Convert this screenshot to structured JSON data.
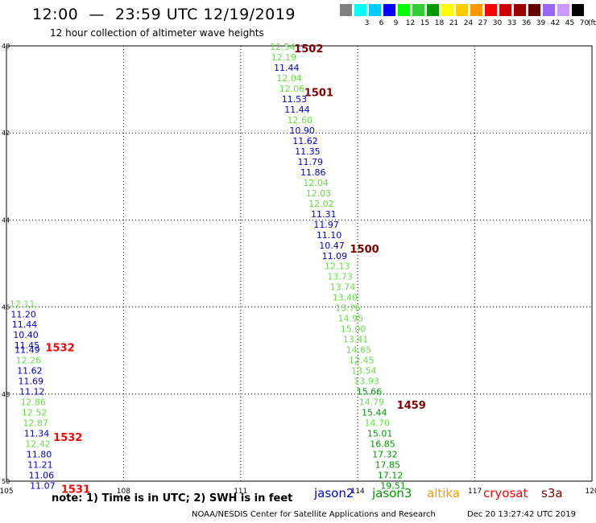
{
  "title": "12:00  —  23:59 UTC 12/19/2019",
  "subtitle": "12 hour collection of altimeter wave heights",
  "scale": {
    "labels": [
      "",
      "3",
      "6",
      "9",
      "12",
      "15",
      "18",
      "21",
      "24",
      "27",
      "30",
      "33",
      "36",
      "39",
      "42",
      "45",
      "70"
    ],
    "colors": [
      "#808080",
      "#00ffff",
      "#00ccff",
      "#0000ff",
      "#00ff00",
      "#33cc33",
      "#009900",
      "#ffff00",
      "#ffcc00",
      "#ff9900",
      "#ff0000",
      "#cc0000",
      "#990000",
      "#660000",
      "#9966ff",
      "#cc99ff",
      "#000000"
    ],
    "unit": "(ft)"
  },
  "map": {
    "x_ticks": [
      "105",
      "108",
      "111",
      "114",
      "117",
      "120"
    ],
    "y_ticks": [
      "40",
      "42",
      "44",
      "46",
      "48",
      "50"
    ],
    "lon_range": [
      105,
      120
    ],
    "lat_range": [
      40,
      50
    ]
  },
  "observations": [
    {
      "value": "12.54",
      "lon": 111.75,
      "lat": 40.02,
      "color": "#66dd44"
    },
    {
      "value": "12.19",
      "lon": 111.78,
      "lat": 40.26,
      "color": "#66dd44"
    },
    {
      "value": "11.44",
      "lon": 111.85,
      "lat": 40.5,
      "color": "#0000cc"
    },
    {
      "value": "12.04",
      "lon": 111.92,
      "lat": 40.74,
      "color": "#66dd44"
    },
    {
      "value": "12.06",
      "lon": 111.99,
      "lat": 40.98,
      "color": "#66dd44"
    },
    {
      "value": "11.53",
      "lon": 112.05,
      "lat": 41.22,
      "color": "#0000cc"
    },
    {
      "value": "11.44",
      "lon": 112.12,
      "lat": 41.46,
      "color": "#0000cc"
    },
    {
      "value": "12.60",
      "lon": 112.19,
      "lat": 41.7,
      "color": "#66dd44"
    },
    {
      "value": "10.90",
      "lon": 112.25,
      "lat": 41.94,
      "color": "#0000cc"
    },
    {
      "value": "11.62",
      "lon": 112.33,
      "lat": 42.18,
      "color": "#0000cc"
    },
    {
      "value": "11.35",
      "lon": 112.39,
      "lat": 42.42,
      "color": "#0000cc"
    },
    {
      "value": "11.79",
      "lon": 112.46,
      "lat": 42.66,
      "color": "#0000cc"
    },
    {
      "value": "11.86",
      "lon": 112.53,
      "lat": 42.9,
      "color": "#0000cc"
    },
    {
      "value": "12.04",
      "lon": 112.6,
      "lat": 43.14,
      "color": "#66dd44"
    },
    {
      "value": "12.03",
      "lon": 112.67,
      "lat": 43.38,
      "color": "#66dd44"
    },
    {
      "value": "12.02",
      "lon": 112.74,
      "lat": 43.62,
      "color": "#66dd44"
    },
    {
      "value": "11.31",
      "lon": 112.8,
      "lat": 43.86,
      "color": "#0000cc"
    },
    {
      "value": "11.97",
      "lon": 112.87,
      "lat": 44.1,
      "color": "#0000cc"
    },
    {
      "value": "11.10",
      "lon": 112.94,
      "lat": 44.34,
      "color": "#0000cc"
    },
    {
      "value": "10.47",
      "lon": 113.01,
      "lat": 44.58,
      "color": "#0000cc"
    },
    {
      "value": "11.09",
      "lon": 113.08,
      "lat": 44.82,
      "color": "#0000cc"
    },
    {
      "value": "12.13",
      "lon": 113.15,
      "lat": 45.06,
      "color": "#66dd44"
    },
    {
      "value": "13.73",
      "lon": 113.22,
      "lat": 45.3,
      "color": "#66dd44"
    },
    {
      "value": "13.74",
      "lon": 113.29,
      "lat": 45.54,
      "color": "#66dd44"
    },
    {
      "value": "13.40",
      "lon": 113.35,
      "lat": 45.78,
      "color": "#66dd44"
    },
    {
      "value": "13.76",
      "lon": 113.42,
      "lat": 46.02,
      "color": "#66dd44"
    },
    {
      "value": "14.95",
      "lon": 113.49,
      "lat": 46.26,
      "color": "#66dd44"
    },
    {
      "value": "15.00",
      "lon": 113.56,
      "lat": 46.5,
      "color": "#66dd44"
    },
    {
      "value": "13.41",
      "lon": 113.62,
      "lat": 46.74,
      "color": "#66dd44"
    },
    {
      "value": "14.65",
      "lon": 113.7,
      "lat": 46.98,
      "color": "#66dd44"
    },
    {
      "value": "12.45",
      "lon": 113.77,
      "lat": 47.22,
      "color": "#66dd44"
    },
    {
      "value": "13.54",
      "lon": 113.83,
      "lat": 47.46,
      "color": "#66dd44"
    },
    {
      "value": "13.93",
      "lon": 113.9,
      "lat": 47.7,
      "color": "#66dd44"
    },
    {
      "value": "15.66",
      "lon": 113.97,
      "lat": 47.94,
      "color": "#009900"
    },
    {
      "value": "14.79",
      "lon": 114.03,
      "lat": 48.18,
      "color": "#66dd44"
    },
    {
      "value": "15.44",
      "lon": 114.1,
      "lat": 48.42,
      "color": "#009900"
    },
    {
      "value": "14.70",
      "lon": 114.17,
      "lat": 48.66,
      "color": "#66dd44"
    },
    {
      "value": "15.01",
      "lon": 114.24,
      "lat": 48.9,
      "color": "#009900"
    },
    {
      "value": "16.85",
      "lon": 114.31,
      "lat": 49.14,
      "color": "#009900"
    },
    {
      "value": "17.32",
      "lon": 114.37,
      "lat": 49.38,
      "color": "#009900"
    },
    {
      "value": "17.85",
      "lon": 114.44,
      "lat": 49.62,
      "color": "#009900"
    },
    {
      "value": "17.12",
      "lon": 114.51,
      "lat": 49.86,
      "color": "#009900"
    },
    {
      "value": "19.51",
      "lon": 114.58,
      "lat": 50.1,
      "color": "#009900"
    },
    {
      "value": "12.11",
      "lon": 105.08,
      "lat": 45.92,
      "color": "#66dd44"
    },
    {
      "value": "11.20",
      "lon": 105.11,
      "lat": 46.16,
      "color": "#0000cc"
    },
    {
      "value": "11.44",
      "lon": 105.14,
      "lat": 46.4,
      "color": "#0000cc"
    },
    {
      "value": "10.40",
      "lon": 105.17,
      "lat": 46.64,
      "color": "#0000cc"
    },
    {
      "value": "11.45",
      "lon": 105.2,
      "lat": 46.88,
      "color": "#0000cc"
    },
    {
      "value": "11.49",
      "lon": 105.21,
      "lat": 46.98,
      "color": "#0000cc"
    },
    {
      "value": "12.26",
      "lon": 105.24,
      "lat": 47.22,
      "color": "#66dd44"
    },
    {
      "value": "11.62",
      "lon": 105.27,
      "lat": 47.46,
      "color": "#0000cc"
    },
    {
      "value": "11.69",
      "lon": 105.3,
      "lat": 47.7,
      "color": "#0000cc"
    },
    {
      "value": "11.12",
      "lon": 105.33,
      "lat": 47.94,
      "color": "#0000cc"
    },
    {
      "value": "12.86",
      "lon": 105.36,
      "lat": 48.18,
      "color": "#66dd44"
    },
    {
      "value": "12.52",
      "lon": 105.39,
      "lat": 48.42,
      "color": "#66dd44"
    },
    {
      "value": "12.87",
      "lon": 105.42,
      "lat": 48.66,
      "color": "#66dd44"
    },
    {
      "value": "11.34",
      "lon": 105.45,
      "lat": 48.9,
      "color": "#0000cc"
    },
    {
      "value": "12.42",
      "lon": 105.48,
      "lat": 49.14,
      "color": "#66dd44"
    },
    {
      "value": "11.80",
      "lon": 105.51,
      "lat": 49.38,
      "color": "#0000cc"
    },
    {
      "value": "11.21",
      "lon": 105.54,
      "lat": 49.62,
      "color": "#0000cc"
    },
    {
      "value": "11.06",
      "lon": 105.57,
      "lat": 49.86,
      "color": "#0000cc"
    },
    {
      "value": "11.07",
      "lon": 105.6,
      "lat": 50.1,
      "color": "#0000cc"
    }
  ],
  "time_labels": [
    {
      "text": "1502",
      "lon": 112.37,
      "lat": 40.06,
      "color": "#800000"
    },
    {
      "text": "1501",
      "lon": 112.63,
      "lat": 41.06,
      "color": "#800000"
    },
    {
      "text": "1500",
      "lon": 113.8,
      "lat": 44.66,
      "color": "#800000"
    },
    {
      "text": "1459",
      "lon": 115.0,
      "lat": 48.24,
      "color": "#800000"
    },
    {
      "text": "1532",
      "lon": 106.0,
      "lat": 46.92,
      "color": "#ff0000"
    },
    {
      "text": "1532",
      "lon": 106.2,
      "lat": 48.98,
      "color": "#ff0000"
    },
    {
      "text": "1531",
      "lon": 106.4,
      "lat": 50.18,
      "color": "#ff0000"
    }
  ],
  "note": "note:  1) Time is in UTC;  2) SWH is in feet",
  "legend": [
    {
      "label": "jason2",
      "color": "#0000cc",
      "pos": 390
    },
    {
      "label": "jason3",
      "color": "#009900",
      "pos": 462
    },
    {
      "label": "altika",
      "color": "#ff9900",
      "pos": 530
    },
    {
      "label": "cryosat",
      "color": "#ff0000",
      "pos": 600
    },
    {
      "label": "s3a",
      "color": "#800000",
      "pos": 672
    }
  ],
  "credit": "NOAA/NESDIS Center for Satellite Applications and Research",
  "timestamp": "Dec 20 13:27:42 UTC 2019"
}
